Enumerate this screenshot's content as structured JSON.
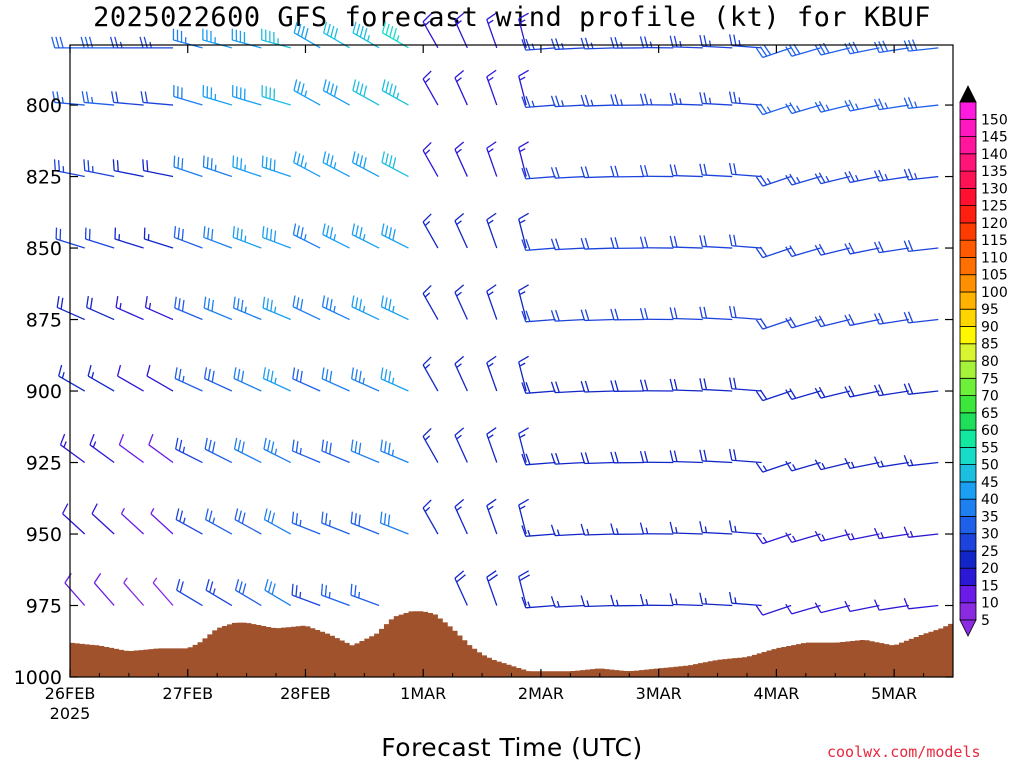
{
  "chart_data": {
    "type": "wind-barb profile",
    "title": "2025022600 GFS forecast wind profile (kt) for KBUF",
    "xlabel": "Forecast Time (UTC)",
    "ylabel": "",
    "y_axis": {
      "reversed": true,
      "ylim": [
        1000,
        779
      ],
      "ticks": [
        800,
        825,
        850,
        875,
        900,
        925,
        950,
        975,
        1000
      ]
    },
    "x_axis": {
      "ticks": [
        "26FEB",
        "27FEB",
        "28FEB",
        "1MAR",
        "2MAR",
        "3MAR",
        "4MAR",
        "5MAR"
      ],
      "first_tick_sublabel": "2025",
      "xlim_days": [
        0,
        7.5
      ]
    },
    "grid": false,
    "legend": "colorbar right",
    "colorbar": {
      "labels": [
        "5",
        "10",
        "15",
        "20",
        "25",
        "30",
        "35",
        "40",
        "45",
        "50",
        "55",
        "60",
        "65",
        "70",
        "75",
        "80",
        "85",
        "90",
        "95",
        "100",
        "105",
        "110",
        "115",
        "120",
        "125",
        "130",
        "135",
        "140",
        "145",
        "150"
      ],
      "colors": [
        "#8a2be2",
        "#6a1be8",
        "#2b18d6",
        "#1226c8",
        "#1c44dd",
        "#1f60ea",
        "#1e7ff0",
        "#1a9ff2",
        "#1cbfe0",
        "#17dcc8",
        "#13e8a0",
        "#1fde5a",
        "#3ce63a",
        "#6ef03a",
        "#a6f23a",
        "#d8f530",
        "#fff700",
        "#ffd500",
        "#ffb200",
        "#ff9000",
        "#ff7000",
        "#ff5a00",
        "#ff3c00",
        "#ff1f10",
        "#ff1030",
        "#ff1255",
        "#ff1478",
        "#ff169c",
        "#ff18c0",
        "#ff1ae0"
      ],
      "extend": "both"
    },
    "terrain": {
      "color": "#a0522d",
      "description": "surface pressure (hPa)",
      "days": [
        0,
        0.25,
        0.5,
        0.75,
        1,
        1.1,
        1.25,
        1.4,
        1.5,
        1.75,
        2,
        2.2,
        2.4,
        2.6,
        2.75,
        2.9,
        3,
        3.1,
        3.25,
        3.4,
        3.5,
        3.6,
        3.75,
        3.9,
        4,
        4.25,
        4.5,
        4.75,
        5,
        5.25,
        5.5,
        5.75,
        6,
        6.25,
        6.5,
        6.75,
        7,
        7.25,
        7.4,
        7.5
      ],
      "pressure": [
        988,
        989,
        991,
        990,
        990,
        988,
        983,
        981,
        981,
        983,
        982,
        985,
        989,
        985,
        979,
        977,
        977,
        978,
        983,
        989,
        992,
        994,
        996,
        998,
        998,
        998,
        997,
        998,
        997,
        996,
        994,
        993,
        990,
        988,
        988,
        987,
        989,
        985,
        983,
        981
      ]
    },
    "barbs": {
      "levels": [
        780,
        800,
        825,
        850,
        875,
        900,
        925,
        950,
        975
      ],
      "times_days": [
        0.125,
        0.375,
        0.625,
        0.875,
        1.125,
        1.375,
        1.625,
        1.875,
        2.125,
        2.375,
        2.625,
        2.875,
        3.125,
        3.375,
        3.625,
        3.875,
        4.125,
        4.375,
        4.625,
        4.875,
        5.125,
        5.375,
        5.625,
        5.875,
        6.125,
        6.375,
        6.625,
        6.875,
        7.125,
        7.375
      ],
      "notes": "barb direction (deg, from) and speed (kt) per time/level"
    }
  },
  "footer": {
    "credit": "coolwx.com/models"
  }
}
